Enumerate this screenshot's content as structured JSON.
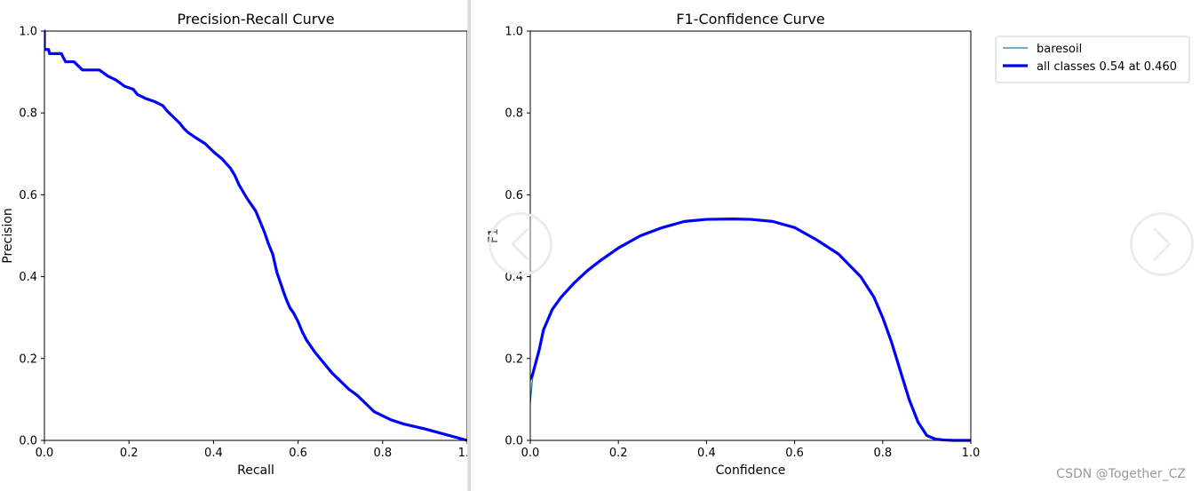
{
  "chart_data": [
    {
      "type": "line",
      "title": "Precision-Recall Curve",
      "xlabel": "Recall",
      "ylabel": "Precision",
      "xlim": [
        0,
        1
      ],
      "ylim": [
        0,
        1
      ],
      "xticks": [
        "0.0",
        "0.2",
        "0.4",
        "0.6",
        "0.8",
        "1.0"
      ],
      "yticks": [
        "0.0",
        "0.2",
        "0.4",
        "0.6",
        "0.8",
        "1.0"
      ],
      "grid": false,
      "series": [
        {
          "color": "#0000ff",
          "x": [
            0.0,
            0.0,
            0.005,
            0.01,
            0.012,
            0.02,
            0.04,
            0.045,
            0.05,
            0.06,
            0.07,
            0.08,
            0.09,
            0.1,
            0.13,
            0.15,
            0.17,
            0.19,
            0.21,
            0.22,
            0.24,
            0.26,
            0.28,
            0.29,
            0.3,
            0.31,
            0.32,
            0.33,
            0.34,
            0.36,
            0.38,
            0.39,
            0.4,
            0.42,
            0.44,
            0.45,
            0.46,
            0.48,
            0.5,
            0.52,
            0.53,
            0.54,
            0.55,
            0.56,
            0.57,
            0.58,
            0.59,
            0.6,
            0.61,
            0.62,
            0.63,
            0.64,
            0.66,
            0.68,
            0.7,
            0.72,
            0.74,
            0.76,
            0.78,
            0.8,
            0.82,
            0.85,
            0.9,
            0.95,
            1.0
          ],
          "y": [
            1.0,
            0.955,
            0.955,
            0.955,
            0.945,
            0.945,
            0.945,
            0.935,
            0.925,
            0.925,
            0.925,
            0.915,
            0.905,
            0.905,
            0.905,
            0.89,
            0.88,
            0.865,
            0.858,
            0.845,
            0.835,
            0.828,
            0.818,
            0.805,
            0.795,
            0.785,
            0.775,
            0.762,
            0.752,
            0.738,
            0.725,
            0.715,
            0.705,
            0.688,
            0.665,
            0.648,
            0.625,
            0.59,
            0.56,
            0.51,
            0.48,
            0.455,
            0.41,
            0.38,
            0.35,
            0.325,
            0.31,
            0.29,
            0.265,
            0.245,
            0.23,
            0.215,
            0.19,
            0.165,
            0.145,
            0.125,
            0.11,
            0.09,
            0.07,
            0.06,
            0.05,
            0.04,
            0.028,
            0.014,
            0.0
          ]
        }
      ]
    },
    {
      "type": "line",
      "title": "F1-Confidence Curve",
      "xlabel": "Confidence",
      "ylabel": "F1",
      "xlim": [
        0,
        1
      ],
      "ylim": [
        0,
        1
      ],
      "xticks": [
        "0.0",
        "0.2",
        "0.4",
        "0.6",
        "0.8",
        "1.0"
      ],
      "yticks": [
        "0.0",
        "0.2",
        "0.4",
        "0.6",
        "0.8",
        "1.0"
      ],
      "grid": false,
      "legend": "upper-right-outside",
      "series": [
        {
          "name": "baresoil",
          "color": "#1f77b4",
          "width": "thin",
          "x": [
            0.0,
            0.005,
            0.01,
            0.02,
            0.03,
            0.05,
            0.07,
            0.1,
            0.13,
            0.16,
            0.2,
            0.25,
            0.3,
            0.35,
            0.4,
            0.46,
            0.5,
            0.55,
            0.6,
            0.65,
            0.7,
            0.75,
            0.78,
            0.8,
            0.82,
            0.84,
            0.86,
            0.88,
            0.9,
            0.92,
            0.94,
            0.96,
            1.0
          ],
          "y": [
            0.09,
            0.15,
            0.18,
            0.22,
            0.27,
            0.32,
            0.35,
            0.385,
            0.415,
            0.44,
            0.47,
            0.5,
            0.52,
            0.535,
            0.54,
            0.541,
            0.54,
            0.535,
            0.52,
            0.49,
            0.455,
            0.4,
            0.35,
            0.3,
            0.24,
            0.17,
            0.1,
            0.045,
            0.012,
            0.003,
            0.001,
            0.0,
            0.0
          ]
        },
        {
          "name": "all classes 0.54 at 0.460",
          "color": "#0000ff",
          "width": "thick",
          "x": [
            0.0,
            0.005,
            0.01,
            0.02,
            0.03,
            0.05,
            0.07,
            0.1,
            0.13,
            0.16,
            0.2,
            0.25,
            0.3,
            0.35,
            0.4,
            0.46,
            0.5,
            0.55,
            0.6,
            0.65,
            0.7,
            0.75,
            0.78,
            0.8,
            0.82,
            0.84,
            0.86,
            0.88,
            0.9,
            0.92,
            0.94,
            0.96,
            1.0
          ],
          "y": [
            0.15,
            0.16,
            0.18,
            0.22,
            0.27,
            0.32,
            0.35,
            0.385,
            0.415,
            0.44,
            0.47,
            0.5,
            0.52,
            0.535,
            0.54,
            0.541,
            0.54,
            0.535,
            0.52,
            0.49,
            0.455,
            0.4,
            0.35,
            0.3,
            0.24,
            0.17,
            0.1,
            0.045,
            0.012,
            0.003,
            0.001,
            0.0,
            0.0
          ]
        }
      ]
    }
  ],
  "ui": {
    "prev_icon": "chevron-left-icon",
    "next_icon": "chevron-right-icon",
    "nav_ring_color": "#ebebeb",
    "watermark": "CSDN @Together_CZ"
  }
}
